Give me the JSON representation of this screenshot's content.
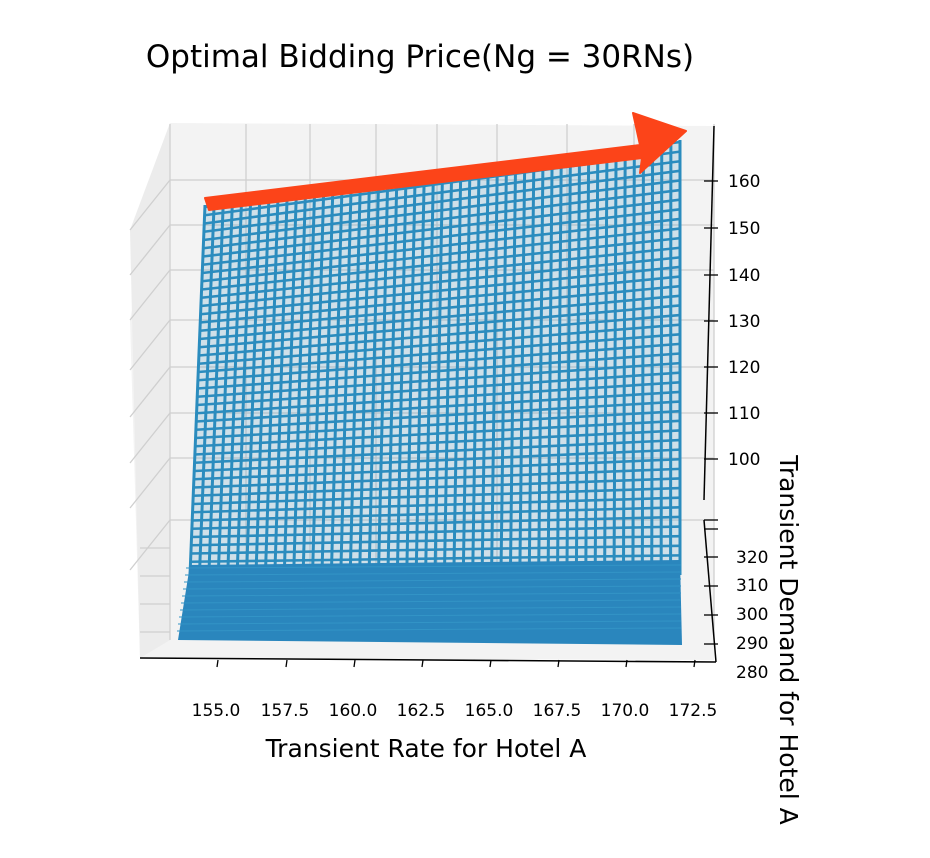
{
  "chart_data": {
    "type": "surface",
    "title": "Optimal Bidding Price(Ng = 30RNs)",
    "xlabel": "Transient Rate for Hotel A",
    "ylabel": "Transient Demand for Hotel A",
    "zlabel": "",
    "x_ticks": [
      "155.0",
      "157.5",
      "160.0",
      "162.5",
      "165.0",
      "167.5",
      "170.0",
      "172.5"
    ],
    "y_ticks": [
      "280",
      "290",
      "300",
      "310",
      "320"
    ],
    "z_ticks": [
      "100",
      "110",
      "120",
      "130",
      "140",
      "150",
      "160"
    ],
    "xlim": [
      153.5,
      174
    ],
    "ylim": [
      280,
      325
    ],
    "zlim": [
      90,
      170
    ],
    "surface": {
      "x_range": [
        154,
        173
      ],
      "front_edge_z": [
        153,
        168
      ],
      "description_color": "#2b8cbe"
    },
    "annotation_arrow": {
      "color": "#ff4422",
      "from_x": 154,
      "to_x": 173
    },
    "grid": true,
    "colors": {
      "surface": "#2b8cbe",
      "surface_dense": "#2a86bd",
      "arrow": "#fc4419",
      "pane": "#f3f3f3",
      "grid": "#cfcfcf"
    }
  }
}
